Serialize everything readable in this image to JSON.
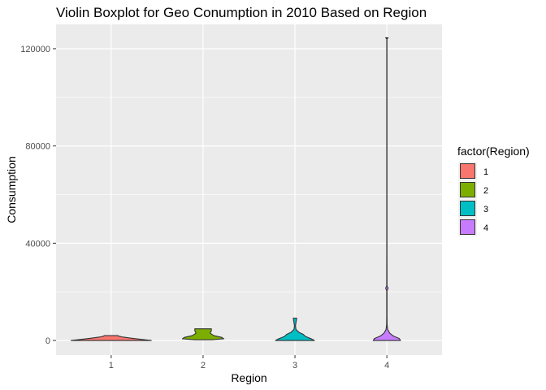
{
  "chart_data": {
    "type": "violin",
    "title": "Violin Boxplot for Geo Conumption in 2010 Based on Region",
    "xlabel": "Region",
    "ylabel": "Consumption",
    "ylim": [
      -6000,
      130000
    ],
    "y_ticks": [
      0,
      40000,
      80000,
      120000
    ],
    "y_tick_labels": [
      "0",
      "40000",
      "80000",
      "120000"
    ],
    "categories": [
      "1",
      "2",
      "3",
      "4"
    ],
    "grid": true,
    "legend": {
      "title": "factor(Region)",
      "position": "right",
      "entries": [
        "1",
        "2",
        "3",
        "4"
      ]
    },
    "colors": [
      "#F8766D",
      "#7CAE00",
      "#00BFC4",
      "#C77CFF"
    ],
    "panel_background": "#EBEBEB",
    "series": [
      {
        "category": "1",
        "min": 0,
        "max": 2000,
        "profile": [
          [
            0,
            0.97
          ],
          [
            400,
            0.75
          ],
          [
            900,
            0.5
          ],
          [
            1400,
            0.28
          ],
          [
            1800,
            0.18
          ],
          [
            2000,
            0.17
          ]
        ]
      },
      {
        "category": "2",
        "min": 300,
        "max": 4800,
        "profile": [
          [
            300,
            0.2
          ],
          [
            700,
            0.5
          ],
          [
            1300,
            0.45
          ],
          [
            2000,
            0.26
          ],
          [
            3000,
            0.17
          ],
          [
            4000,
            0.2
          ],
          [
            4600,
            0.2
          ],
          [
            4800,
            0.2
          ]
        ]
      },
      {
        "category": "3",
        "min": 0,
        "max": 9200,
        "profile": [
          [
            0,
            0.47
          ],
          [
            800,
            0.38
          ],
          [
            1600,
            0.26
          ],
          [
            2500,
            0.2
          ],
          [
            3300,
            0.1
          ],
          [
            4500,
            0.025
          ],
          [
            6000,
            0.012
          ],
          [
            9000,
            0.04
          ],
          [
            9200,
            0.04
          ]
        ]
      },
      {
        "category": "4",
        "min": 0,
        "max": 124500,
        "profile": [
          [
            0,
            0.33
          ],
          [
            800,
            0.3
          ],
          [
            1800,
            0.16
          ],
          [
            3000,
            0.07
          ],
          [
            4500,
            0.02
          ],
          [
            6500,
            0.006
          ],
          [
            10000,
            0.004
          ],
          [
            20500,
            0.004
          ],
          [
            21500,
            0.03
          ],
          [
            22500,
            0.004
          ],
          [
            35000,
            0.003
          ],
          [
            124000,
            0.003
          ],
          [
            124500,
            0.03
          ]
        ]
      }
    ]
  }
}
